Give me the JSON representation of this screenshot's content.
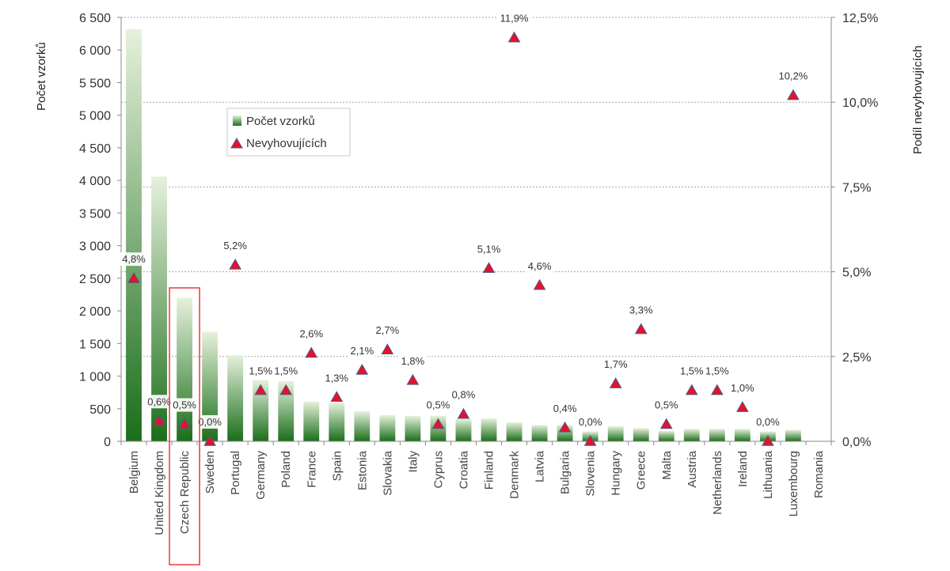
{
  "chart_data": {
    "type": "bar",
    "categories": [
      "Belgium",
      "United Kingdom",
      "Czech Republic",
      "Sweden",
      "Portugal",
      "Germany",
      "Poland",
      "France",
      "Spain",
      "Estonia",
      "Slovakia",
      "Italy",
      "Cyprus",
      "Croatia",
      "Finland",
      "Denmark",
      "Latvia",
      "Bulgaria",
      "Slovenia",
      "Hungary",
      "Greece",
      "Malta",
      "Austria",
      "Netherlands",
      "Ireland",
      "Lithuania",
      "Luxembourg",
      "Romania"
    ],
    "series": [
      {
        "name": "Počet vzorků",
        "type": "bar",
        "axis": "left",
        "values": [
          6320,
          4060,
          2200,
          1680,
          1320,
          940,
          920,
          610,
          590,
          460,
          400,
          390,
          390,
          340,
          350,
          290,
          250,
          250,
          150,
          230,
          200,
          160,
          190,
          190,
          190,
          150,
          175,
          0
        ]
      },
      {
        "name": "Nevyhovujících",
        "type": "scatter",
        "axis": "right",
        "values": [
          4.8,
          0.6,
          0.5,
          0.0,
          5.2,
          1.5,
          1.5,
          2.6,
          1.3,
          2.1,
          2.7,
          1.8,
          0.5,
          0.8,
          5.1,
          11.9,
          4.6,
          0.4,
          0.0,
          1.7,
          3.3,
          0.5,
          1.5,
          1.5,
          1.0,
          0.0,
          10.2,
          null
        ],
        "labels": [
          "4,8%",
          "0,6%",
          "0,5%",
          "0,0%",
          "5,2%",
          "1,5%",
          "1,5%",
          "2,6%",
          "1,3%",
          "2,1%",
          "2,7%",
          "1,8%",
          "0,5%",
          "0,8%",
          "5,1%",
          "11,9%",
          "4,6%",
          "0,4%",
          "0,0%",
          "1,7%",
          "3,3%",
          "0,5%",
          "1,5%",
          "1,5%",
          "1,0%",
          "0,0%",
          "10,2%",
          ""
        ]
      }
    ],
    "y_left": {
      "label": "Počet vzorků",
      "range": [
        0,
        6500
      ],
      "ticks": [
        0,
        500,
        1000,
        1500,
        2000,
        2500,
        3000,
        3500,
        4000,
        4500,
        5000,
        5500,
        6000,
        6500
      ],
      "tick_labels": [
        "0",
        "500",
        "1 000",
        "1 500",
        "2 000",
        "2 500",
        "3 000",
        "3 500",
        "4 000",
        "4 500",
        "5 000",
        "5 500",
        "6 000",
        "6 500"
      ]
    },
    "y_right": {
      "label": "Podíl nevyhovujících",
      "range": [
        0,
        12.5
      ],
      "ticks": [
        0,
        2.5,
        5,
        7.5,
        10,
        12.5
      ],
      "tick_labels": [
        "0,0%",
        "2,5%",
        "5,0%",
        "7,5%",
        "10,0%",
        "12,5%"
      ]
    },
    "legend": {
      "placement": "upper-left-inside",
      "items": [
        "Počet vzorků",
        "Nevyhovujících"
      ]
    },
    "highlight_category": "Czech Republic",
    "grid": "horizontal dotted at right-axis ticks",
    "colors": {
      "bar_dark": "#1a6e1a",
      "bar_light": "#e6f1dc",
      "marker_fill": "#e8102a",
      "marker_stroke": "#4a5a8a",
      "highlight_box": "#e8383d",
      "grid": "#a6a6a6"
    }
  }
}
